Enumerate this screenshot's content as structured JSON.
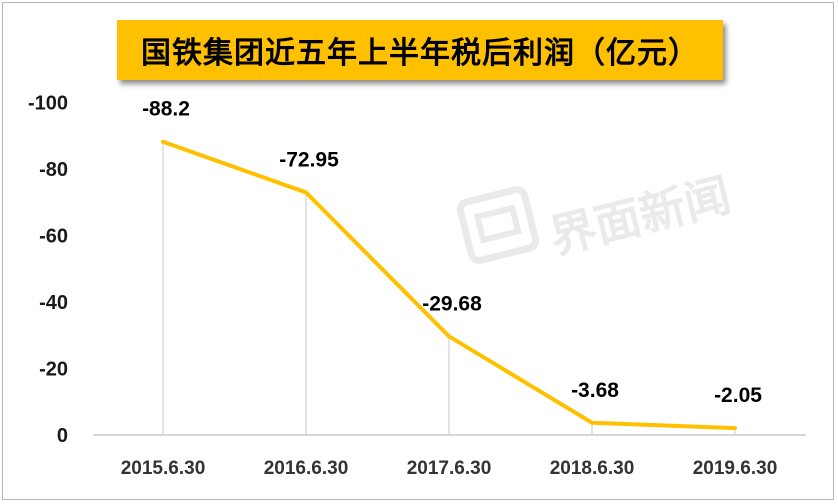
{
  "watermark": {
    "text": "界面新闻"
  },
  "chart_data": {
    "type": "line",
    "title": "国铁集团近五年上半年税后利润（亿元）",
    "categories": [
      "2015.6.30",
      "2016.6.30",
      "2017.6.30",
      "2018.6.30",
      "2019.6.30"
    ],
    "series": [
      {
        "values": [
          -88.2,
          -72.95,
          -29.68,
          -3.68,
          -2.05
        ],
        "labels": [
          "-88.2",
          "-72.95",
          "-29.68",
          "-3.68",
          "-2.05"
        ]
      }
    ],
    "y_ticks": [
      0,
      -20,
      -40,
      -60,
      -80,
      -100
    ],
    "y_tick_labels": [
      "0",
      "-20",
      "-40",
      "-60",
      "-80",
      "-100"
    ],
    "ylim": [
      0,
      -100
    ],
    "y_axis_inverted": true,
    "line_color": "#ffc000",
    "title_background": "#ffc000",
    "grid": "vertical drop lines at categories",
    "legend": "none"
  }
}
